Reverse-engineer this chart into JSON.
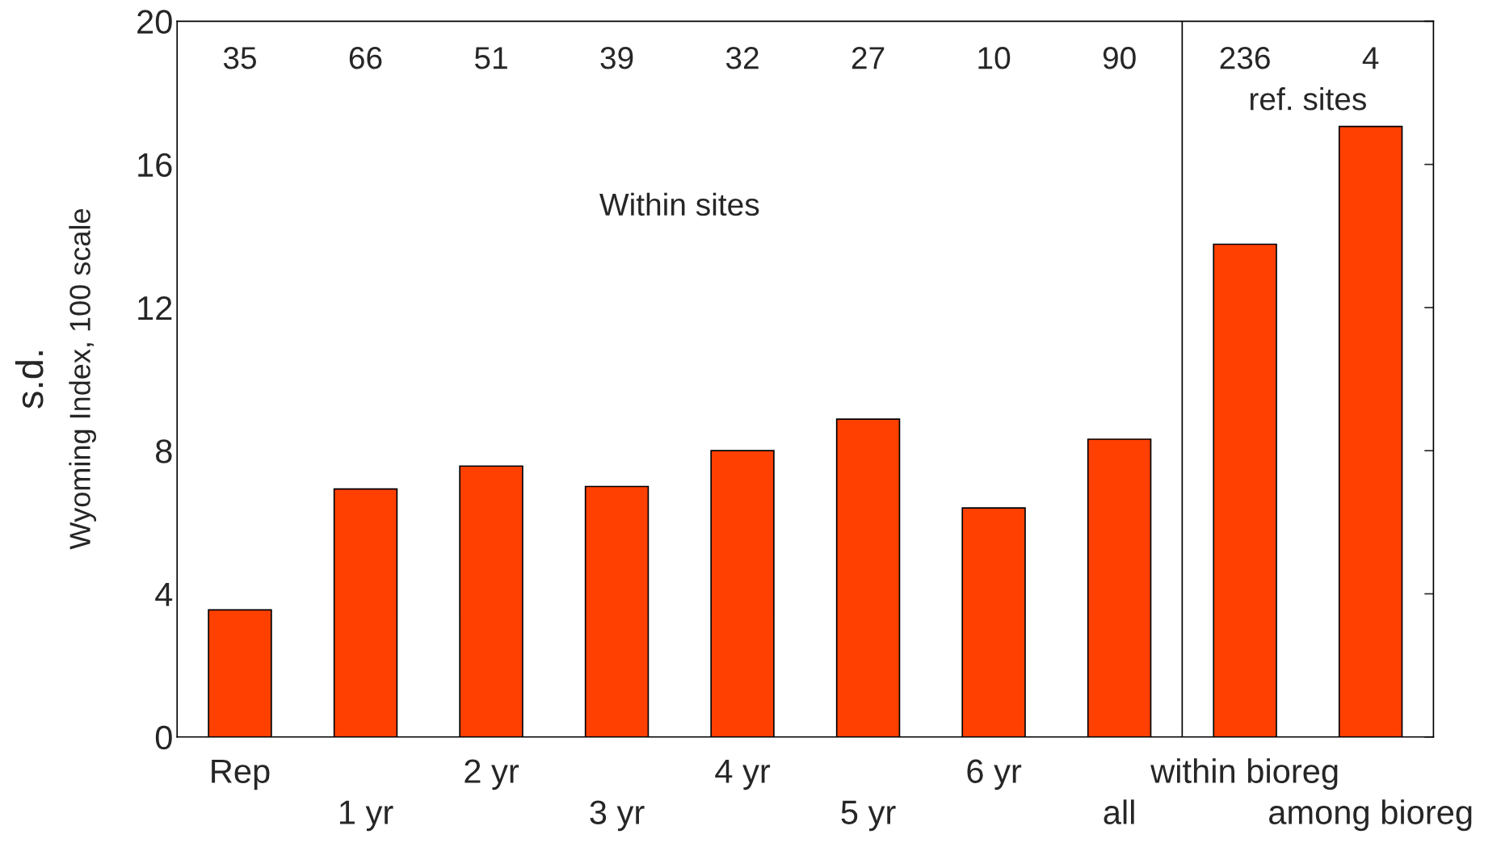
{
  "chart_data": {
    "type": "bar",
    "ylabel": "s.d.\nWyoming Index, 100 scale",
    "categories": [
      "Rep",
      "1 yr",
      "2 yr",
      "3 yr",
      "4 yr",
      "5 yr",
      "6 yr",
      "all",
      "within bioreg",
      "among bioreg"
    ],
    "values": [
      3.55,
      6.93,
      7.57,
      7.0,
      8.0,
      8.88,
      6.4,
      8.32,
      13.77,
      17.06
    ],
    "color": "#ff4000",
    "ylim": [
      0,
      20
    ],
    "yticks": [
      0,
      4,
      8,
      12,
      16,
      20
    ],
    "grid": false,
    "legend": false,
    "annotations": [
      "35",
      "66",
      "51",
      "39",
      "32",
      "27",
      "10",
      "90",
      "236",
      "4",
      "Within sites",
      "ref. sites"
    ]
  }
}
